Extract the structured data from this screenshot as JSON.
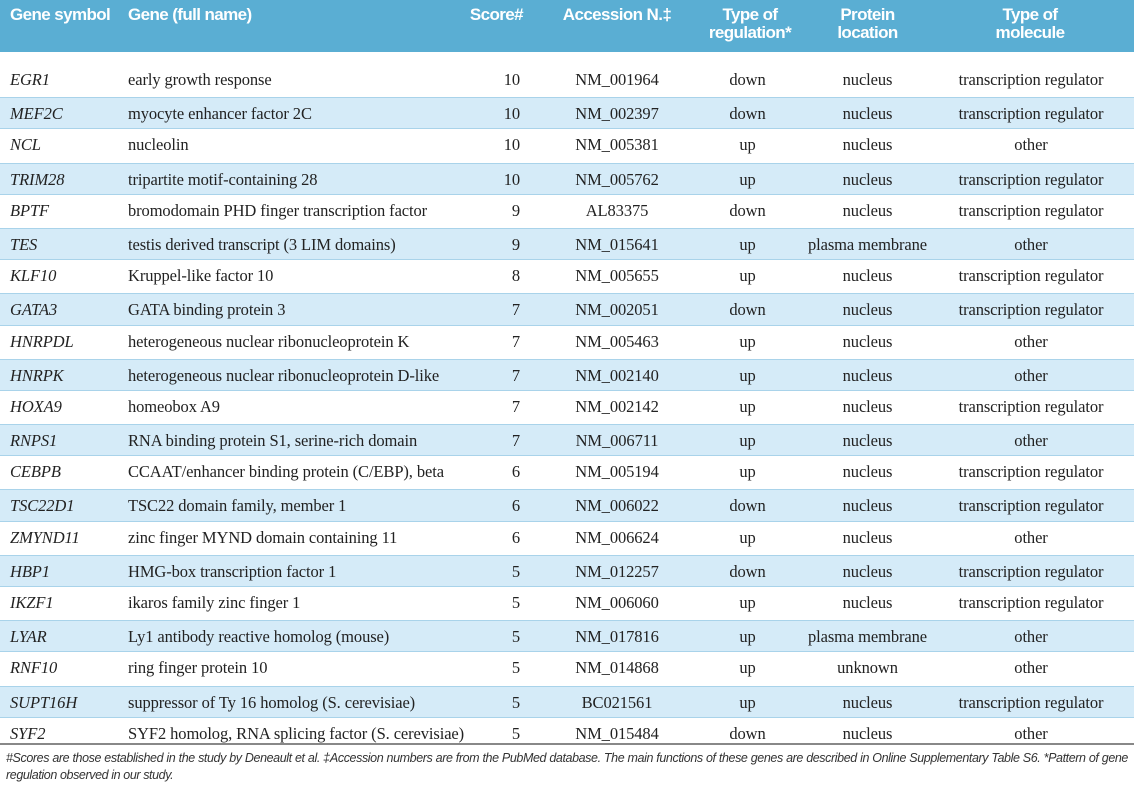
{
  "header": [
    "Gene symbol",
    "Gene (full name)",
    "Score#",
    "Accession N.‡",
    "Type of regulation*",
    "Protein location",
    "Type of molecule"
  ],
  "rows": [
    [
      "EGR1",
      "early growth response",
      "10",
      "NM_001964",
      "down",
      "nucleus",
      "transcription regulator"
    ],
    [
      "MEF2C",
      "myocyte enhancer factor 2C",
      "10",
      "NM_002397",
      "down",
      "nucleus",
      "transcription regulator"
    ],
    [
      "NCL",
      "nucleolin",
      "10",
      "NM_005381",
      "up",
      "nucleus",
      "other"
    ],
    [
      "TRIM28",
      "tripartite motif-containing 28",
      "10",
      "NM_005762",
      "up",
      "nucleus",
      "transcription regulator"
    ],
    [
      "BPTF",
      "bromodomain PHD finger transcription factor",
      "9",
      "AL83375",
      "down",
      "nucleus",
      "transcription regulator"
    ],
    [
      "TES",
      "testis derived transcript (3 LIM domains)",
      "9",
      "NM_015641",
      "up",
      "plasma membrane",
      "other"
    ],
    [
      "KLF10",
      "Kruppel-like factor 10",
      "8",
      "NM_005655",
      "up",
      "nucleus",
      "transcription regulator"
    ],
    [
      "GATA3",
      "GATA binding protein 3",
      "7",
      "NM_002051",
      "down",
      "nucleus",
      "transcription regulator"
    ],
    [
      "HNRPDL",
      "heterogeneous nuclear ribonucleoprotein K",
      "7",
      "NM_005463",
      "up",
      "nucleus",
      "other"
    ],
    [
      "HNRPK",
      "heterogeneous nuclear ribonucleoprotein D-like",
      "7",
      "NM_002140",
      "up",
      "nucleus",
      "other"
    ],
    [
      "HOXA9",
      "homeobox A9",
      "7",
      "NM_002142",
      "up",
      "nucleus",
      "transcription regulator"
    ],
    [
      "RNPS1",
      "RNA binding protein S1, serine-rich domain",
      "7",
      "NM_006711",
      "up",
      "nucleus",
      "other"
    ],
    [
      "CEBPB",
      "CCAAT/enhancer binding protein (C/EBP), beta",
      "6",
      "NM_005194",
      "up",
      "nucleus",
      "transcription regulator"
    ],
    [
      "TSC22D1",
      "TSC22 domain family, member 1",
      "6",
      "NM_006022",
      "down",
      "nucleus",
      "transcription regulator"
    ],
    [
      "ZMYND11",
      "zinc finger MYND domain containing 11",
      "6",
      "NM_006624",
      "up",
      "nucleus",
      "other"
    ],
    [
      "HBP1",
      "HMG-box transcription factor 1",
      "5",
      "NM_012257",
      "down",
      "nucleus",
      "transcription regulator"
    ],
    [
      "IKZF1",
      "ikaros family zinc finger 1",
      "5",
      "NM_006060",
      "up",
      "nucleus",
      "transcription regulator"
    ],
    [
      "LYAR",
      "Ly1 antibody reactive homolog (mouse)",
      "5",
      "NM_017816",
      "up",
      "plasma membrane",
      "other"
    ],
    [
      "RNF10",
      "ring finger protein 10",
      "5",
      "NM_014868",
      "up",
      "unknown",
      "other"
    ],
    [
      "SUPT16H",
      "suppressor of Ty 16 homolog (S. cerevisiae)",
      "5",
      "BC021561",
      "up",
      "nucleus",
      "transcription regulator"
    ],
    [
      "SYF2",
      "SYF2 homolog, RNA splicing factor (S. cerevisiae)",
      "5",
      "NM_015484",
      "down",
      "nucleus",
      "other"
    ]
  ],
  "footnote": "#Scores are those established in the study by Deneault et al. ‡Accession numbers are from the PubMed database. The main functions of these genes are described in Online Supplementary Table S6. *Pattern of gene regulation observed in our study."
}
